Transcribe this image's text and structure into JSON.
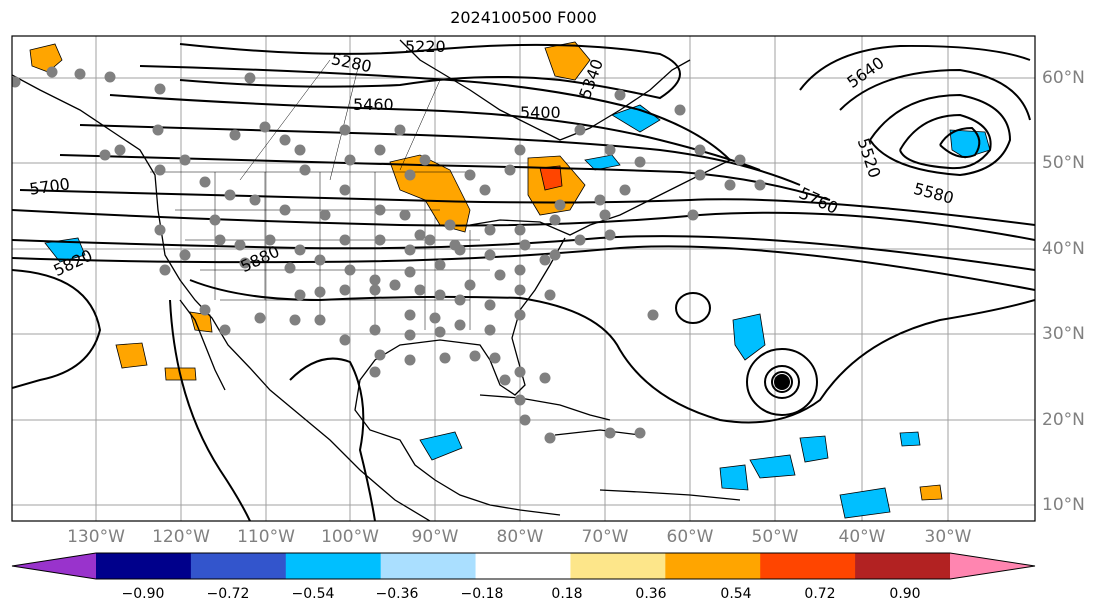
{
  "title": "2024100500 F000",
  "map": {
    "projection": "equidistant cylindrical",
    "region": "North Atlantic / North America",
    "lon_range": [
      -138,
      -15
    ],
    "lat_range": [
      7,
      65
    ],
    "grid": true,
    "contour_color": "#000000",
    "station_color": "#808080",
    "land_line_color": "#000000"
  },
  "lon_labels": [
    "130°W",
    "120°W",
    "110°W",
    "100°W",
    "90°W",
    "80°W",
    "70°W",
    "60°W",
    "50°W",
    "40°W",
    "30°W"
  ],
  "lat_labels": [
    "10°N",
    "20°N",
    "30°N",
    "40°N",
    "50°N",
    "60°N"
  ],
  "contour_labels": [
    "5220",
    "5280",
    "5340",
    "5400",
    "5460",
    "5520",
    "5580",
    "5640",
    "5700",
    "5760",
    "5820",
    "5880"
  ],
  "colorbar": {
    "ticks": [
      "−0.90",
      "−0.72",
      "−0.54",
      "−0.36",
      "−0.18",
      "0.18",
      "0.36",
      "0.54",
      "0.72",
      "0.90"
    ],
    "colors": [
      "#9933cc",
      "#00008b",
      "#3355cc",
      "#00bfff",
      "#aadfff",
      "#ffffff",
      "#fde68a",
      "#ffa500",
      "#ff4500",
      "#b22222",
      "#ff85b0"
    ]
  }
}
